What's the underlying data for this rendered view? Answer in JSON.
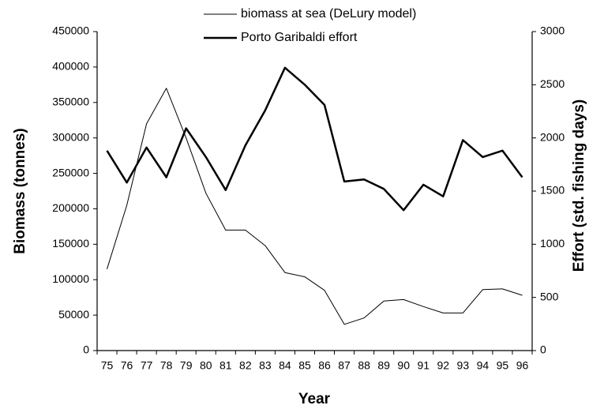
{
  "chart_data": {
    "type": "line",
    "x_label": "Year",
    "y_label": "Biomass (tonnes)",
    "y2_label": "Effort (std. fishing days)",
    "categories": [
      "75",
      "76",
      "77",
      "78",
      "79",
      "80",
      "81",
      "82",
      "83",
      "84",
      "85",
      "86",
      "87",
      "88",
      "89",
      "90",
      "91",
      "92",
      "93",
      "94",
      "95",
      "96"
    ],
    "series": [
      {
        "name": "biomass at sea (DeLury model)",
        "color": "#000000",
        "width": 1,
        "values": [
          115000,
          205000,
          320000,
          370000,
          300000,
          222000,
          170000,
          170000,
          148000,
          110000,
          104000,
          85000,
          37000,
          46000,
          70000,
          72000,
          62000,
          53000,
          53000,
          86000,
          87000,
          78000
        ]
      },
      {
        "name": "Porto Garibaldi effort",
        "color": "#000000",
        "width": 2.5,
        "axis": "y2",
        "values": [
          1880,
          1580,
          1910,
          1630,
          2090,
          1820,
          1510,
          1930,
          2260,
          2660,
          2500,
          2310,
          1590,
          1610,
          1520,
          1320,
          1560,
          1450,
          1980,
          1820,
          1880,
          1630
        ]
      }
    ],
    "ylim": [
      0,
      450000
    ],
    "yticks": [
      0,
      50000,
      100000,
      150000,
      200000,
      250000,
      300000,
      350000,
      400000,
      450000
    ],
    "y2lim": [
      0,
      3000
    ],
    "y2ticks": [
      0,
      500,
      1000,
      1500,
      2000,
      2500,
      3000
    ],
    "grid": false
  }
}
